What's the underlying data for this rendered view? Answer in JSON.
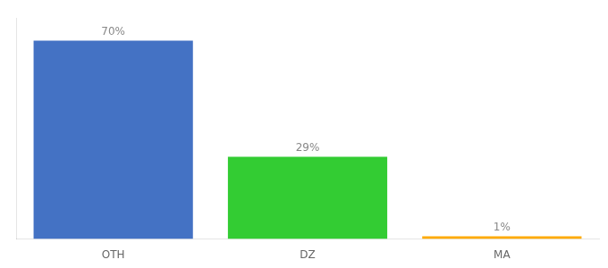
{
  "chart_data": {
    "type": "bar",
    "categories": [
      "OTH",
      "DZ",
      "MA"
    ],
    "values": [
      70,
      29,
      1
    ],
    "value_labels": [
      "70%",
      "29%",
      "1%"
    ],
    "colors": [
      "#4472c4",
      "#33cc33",
      "#ffaa00"
    ],
    "ylim": [
      0,
      78
    ],
    "data_labels": true,
    "tick_labels": "x",
    "grid": false
  }
}
